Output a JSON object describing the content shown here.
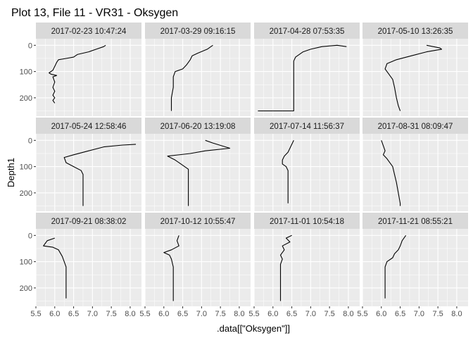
{
  "chart_data": {
    "type": "line",
    "title": "Plot 13, File 11 - VR31  -  Oksygen",
    "xlabel": ".data[[\"Oksygen\"]]",
    "ylabel": "Depth1",
    "x_ticks": [
      "5.5",
      "6.0",
      "6.5",
      "7.0",
      "7.5",
      "8.0"
    ],
    "y_ticks": [
      "0",
      "100",
      "200"
    ],
    "xlim": [
      5.5,
      8.3
    ],
    "ylim": [
      270,
      -25
    ],
    "y_reversed": true,
    "grid": true,
    "layout": "3 rows x 4 columns facets",
    "line_color": "#000000",
    "panel_background": "#ebebeb",
    "strip_background": "#d9d9d9",
    "facets": [
      {
        "label": "2017-02-23 10:47:24",
        "points": [
          [
            7.35,
            0
          ],
          [
            7.3,
            5
          ],
          [
            7.1,
            15
          ],
          [
            6.9,
            25
          ],
          [
            6.6,
            35
          ],
          [
            6.5,
            45
          ],
          [
            6.3,
            50
          ],
          [
            6.1,
            55
          ],
          [
            6.05,
            65
          ],
          [
            6.0,
            80
          ],
          [
            5.95,
            95
          ],
          [
            5.85,
            105
          ],
          [
            5.9,
            110
          ],
          [
            6.05,
            115
          ],
          [
            5.95,
            120
          ],
          [
            6.0,
            140
          ],
          [
            5.95,
            160
          ],
          [
            6.0,
            175
          ],
          [
            5.95,
            190
          ],
          [
            6.0,
            200
          ],
          [
            5.95,
            210
          ],
          [
            6.0,
            220
          ]
        ]
      },
      {
        "label": "2017-03-29 09:16:15",
        "points": [
          [
            7.3,
            0
          ],
          [
            7.15,
            15
          ],
          [
            6.9,
            30
          ],
          [
            6.75,
            40
          ],
          [
            6.7,
            55
          ],
          [
            6.6,
            75
          ],
          [
            6.5,
            90
          ],
          [
            6.3,
            100
          ],
          [
            6.25,
            120
          ],
          [
            6.25,
            160
          ],
          [
            6.2,
            200
          ],
          [
            6.2,
            240
          ],
          [
            6.2,
            250
          ]
        ]
      },
      {
        "label": "2017-04-28 07:53:35",
        "points": [
          [
            7.95,
            5
          ],
          [
            7.7,
            0
          ],
          [
            7.3,
            5
          ],
          [
            7.0,
            15
          ],
          [
            6.8,
            25
          ],
          [
            6.6,
            45
          ],
          [
            6.55,
            60
          ],
          [
            6.55,
            80
          ],
          [
            6.55,
            120
          ],
          [
            6.55,
            160
          ],
          [
            6.55,
            200
          ],
          [
            6.55,
            250
          ],
          [
            5.6,
            250
          ]
        ]
      },
      {
        "label": "2017-05-10 13:26:35",
        "points": [
          [
            7.2,
            0
          ],
          [
            7.55,
            10
          ],
          [
            7.6,
            15
          ],
          [
            7.2,
            25
          ],
          [
            6.8,
            40
          ],
          [
            6.4,
            55
          ],
          [
            6.15,
            70
          ],
          [
            6.1,
            90
          ],
          [
            6.2,
            110
          ],
          [
            6.3,
            130
          ],
          [
            6.35,
            160
          ],
          [
            6.4,
            200
          ],
          [
            6.45,
            230
          ],
          [
            6.5,
            250
          ]
        ]
      },
      {
        "label": "2017-05-24 12:58:46",
        "points": [
          [
            8.15,
            15
          ],
          [
            7.8,
            18
          ],
          [
            7.3,
            25
          ],
          [
            6.9,
            40
          ],
          [
            6.5,
            55
          ],
          [
            6.25,
            65
          ],
          [
            6.3,
            85
          ],
          [
            6.5,
            100
          ],
          [
            6.7,
            115
          ],
          [
            6.75,
            130
          ],
          [
            6.75,
            160
          ],
          [
            6.75,
            200
          ],
          [
            6.75,
            240
          ],
          [
            6.75,
            250
          ]
        ]
      },
      {
        "label": "2017-06-20 13:19:08",
        "points": [
          [
            7.1,
            0
          ],
          [
            7.3,
            10
          ],
          [
            7.75,
            30
          ],
          [
            7.1,
            40
          ],
          [
            6.7,
            50
          ],
          [
            6.1,
            60
          ],
          [
            6.3,
            75
          ],
          [
            6.5,
            95
          ],
          [
            6.65,
            110
          ],
          [
            6.65,
            140
          ],
          [
            6.65,
            180
          ],
          [
            6.65,
            220
          ],
          [
            6.65,
            250
          ]
        ]
      },
      {
        "label": "2017-07-14 11:56:37",
        "points": [
          [
            6.55,
            0
          ],
          [
            6.5,
            15
          ],
          [
            6.45,
            30
          ],
          [
            6.4,
            45
          ],
          [
            6.3,
            60
          ],
          [
            6.25,
            75
          ],
          [
            6.25,
            90
          ],
          [
            6.35,
            100
          ],
          [
            6.4,
            115
          ],
          [
            6.4,
            150
          ],
          [
            6.4,
            200
          ],
          [
            6.4,
            240
          ]
        ]
      },
      {
        "label": "2017-08-31 08:09:47",
        "points": [
          [
            6.0,
            0
          ],
          [
            6.05,
            20
          ],
          [
            6.1,
            40
          ],
          [
            6.05,
            55
          ],
          [
            6.15,
            70
          ],
          [
            6.2,
            80
          ],
          [
            6.3,
            100
          ],
          [
            6.35,
            130
          ],
          [
            6.4,
            160
          ],
          [
            6.45,
            200
          ],
          [
            6.5,
            240
          ],
          [
            6.5,
            250
          ]
        ]
      },
      {
        "label": "2017-09-21 08:38:02",
        "points": [
          [
            6.0,
            10
          ],
          [
            5.8,
            20
          ],
          [
            5.75,
            30
          ],
          [
            5.7,
            40
          ],
          [
            5.95,
            45
          ],
          [
            6.1,
            55
          ],
          [
            6.2,
            80
          ],
          [
            6.25,
            100
          ],
          [
            6.3,
            120
          ],
          [
            6.3,
            160
          ],
          [
            6.3,
            200
          ],
          [
            6.3,
            240
          ]
        ]
      },
      {
        "label": "2017-10-12 10:55:47",
        "points": [
          [
            6.4,
            0
          ],
          [
            6.35,
            20
          ],
          [
            6.4,
            40
          ],
          [
            6.2,
            55
          ],
          [
            6.0,
            65
          ],
          [
            6.15,
            75
          ],
          [
            6.2,
            90
          ],
          [
            6.25,
            120
          ],
          [
            6.25,
            160
          ],
          [
            6.25,
            200
          ],
          [
            6.25,
            250
          ]
        ]
      },
      {
        "label": "2017-11-01 10:54:18",
        "points": [
          [
            6.5,
            0
          ],
          [
            6.35,
            10
          ],
          [
            6.45,
            25
          ],
          [
            6.25,
            40
          ],
          [
            6.3,
            55
          ],
          [
            6.2,
            75
          ],
          [
            6.25,
            90
          ],
          [
            6.2,
            110
          ],
          [
            6.2,
            150
          ],
          [
            6.2,
            200
          ],
          [
            6.2,
            250
          ]
        ]
      },
      {
        "label": "2017-11-21 08:55:21",
        "points": [
          [
            6.65,
            0
          ],
          [
            6.55,
            20
          ],
          [
            6.5,
            40
          ],
          [
            6.45,
            55
          ],
          [
            6.35,
            70
          ],
          [
            6.3,
            85
          ],
          [
            6.15,
            100
          ],
          [
            6.1,
            120
          ],
          [
            6.1,
            160
          ],
          [
            6.1,
            200
          ],
          [
            6.1,
            240
          ]
        ]
      }
    ]
  }
}
